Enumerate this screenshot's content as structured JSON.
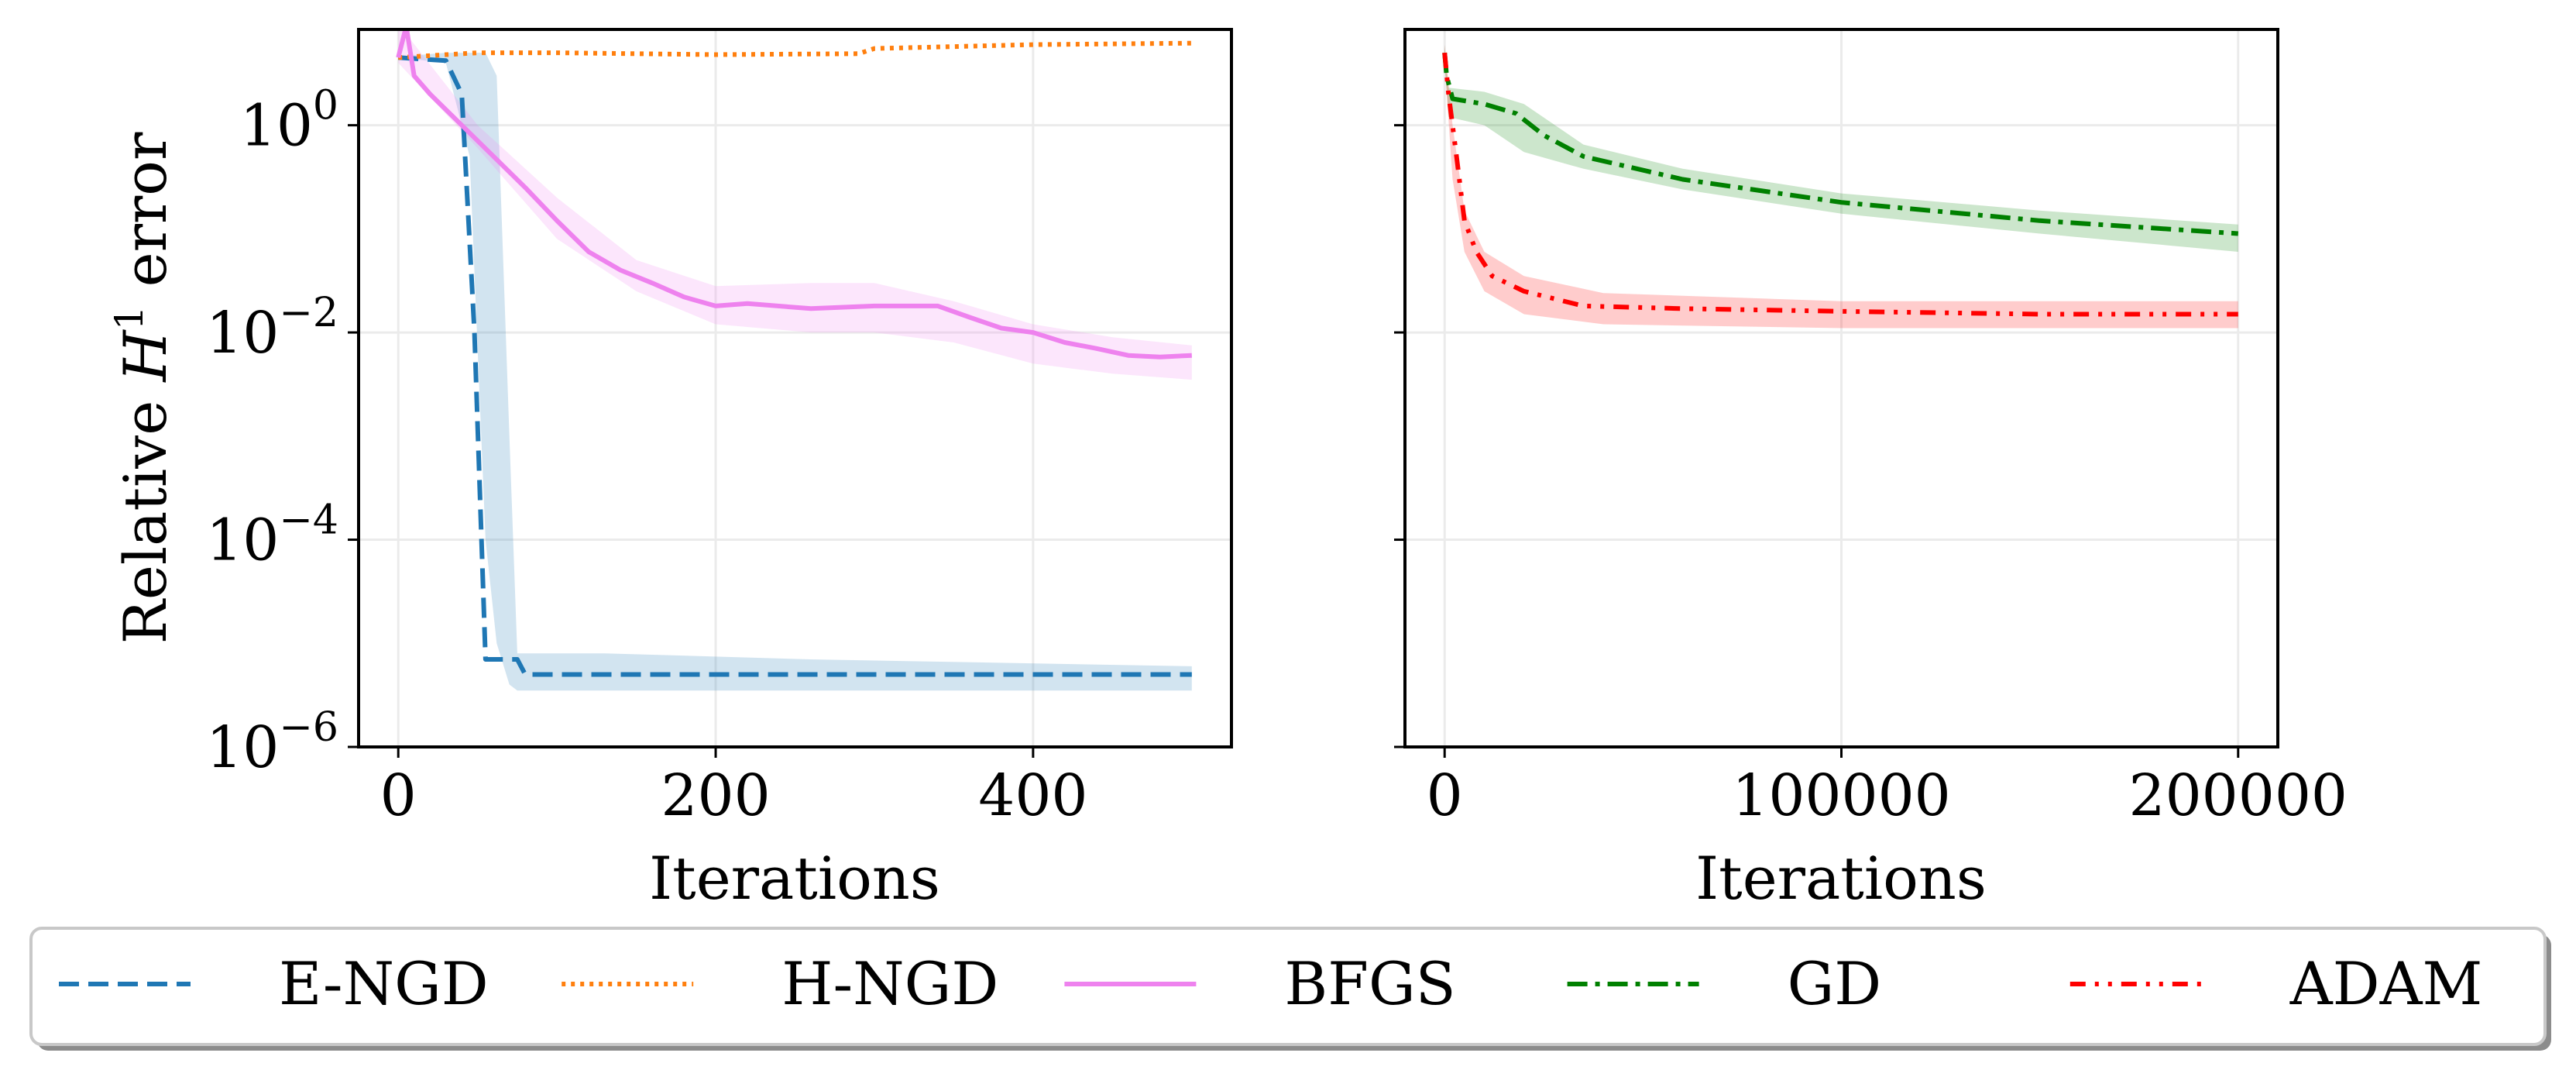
{
  "chart_data": [
    {
      "type": "line",
      "panel": "left",
      "xlabel": "Iterations",
      "ylabel": "Relative H¹ error",
      "ylabel_parts": {
        "prefix": "Relative ",
        "symbol": "H",
        "superscript": "1",
        "suffix": " error"
      },
      "yscale": "log",
      "xlim": [
        -25,
        525
      ],
      "ylim_exp": [
        -6,
        1
      ],
      "xticks": [
        0,
        200,
        400
      ],
      "xtick_labels": [
        "0",
        "200",
        "400"
      ],
      "yticks_exp": [
        0,
        -2,
        -4,
        -6
      ],
      "ytick_labels": [
        {
          "base": "10",
          "exp": "0"
        },
        {
          "base": "10",
          "exp": "−2"
        },
        {
          "base": "10",
          "exp": "−4"
        },
        {
          "base": "10",
          "exp": "−6"
        }
      ],
      "grid": true,
      "series": [
        {
          "name": "E-NGD",
          "color": "#1f77b4",
          "dash": "dashed",
          "x": [
            0,
            30,
            40,
            48,
            55,
            75,
            80,
            500
          ],
          "y": [
            4.5,
            4.2,
            2.0,
            0.01,
            7e-06,
            7e-06,
            5e-06,
            5e-06
          ],
          "band_x": [
            0,
            30,
            45,
            55,
            62,
            70,
            75,
            130,
            260,
            500
          ],
          "band_low": [
            4.5,
            4.0,
            0.5,
            0.0001,
            1e-05,
            4e-06,
            3.5e-06,
            3.5e-06,
            3.5e-06,
            3.5e-06
          ],
          "band_high": [
            4.6,
            5.0,
            5.0,
            5.0,
            3.0,
            0.001,
            8e-06,
            8e-06,
            7e-06,
            6e-06
          ]
        },
        {
          "name": "H-NGD",
          "color": "#ff7f0e",
          "dash": "dotted",
          "x": [
            0,
            50,
            100,
            200,
            290,
            300,
            400,
            500
          ],
          "y": [
            4.5,
            5.0,
            5.0,
            4.8,
            4.9,
            5.5,
            6.0,
            6.2
          ]
        },
        {
          "name": "BFGS",
          "color": "#ee82ee",
          "dash": "solid",
          "x": [
            0,
            5,
            10,
            20,
            40,
            60,
            80,
            100,
            120,
            140,
            160,
            180,
            200,
            220,
            260,
            300,
            340,
            360,
            380,
            400,
            420,
            440,
            460,
            480,
            500
          ],
          "y": [
            4.5,
            9.0,
            3.0,
            2.0,
            1.0,
            0.5,
            0.25,
            0.12,
            0.06,
            0.04,
            0.03,
            0.022,
            0.018,
            0.019,
            0.017,
            0.018,
            0.018,
            0.014,
            0.011,
            0.01,
            0.008,
            0.007,
            0.006,
            0.0058,
            0.006
          ],
          "band_x": [
            0,
            50,
            100,
            150,
            200,
            260,
            300,
            350,
            400,
            450,
            500
          ],
          "band_low": [
            4.0,
            0.6,
            0.08,
            0.025,
            0.012,
            0.01,
            0.01,
            0.008,
            0.005,
            0.004,
            0.0035
          ],
          "band_high": [
            9.5,
            1.0,
            0.2,
            0.05,
            0.028,
            0.03,
            0.03,
            0.02,
            0.012,
            0.009,
            0.0075
          ]
        }
      ]
    },
    {
      "type": "line",
      "panel": "right",
      "xlabel": "Iterations",
      "yscale": "log",
      "xlim": [
        -10000,
        210000
      ],
      "ylim_exp": [
        -6,
        1
      ],
      "xticks": [
        0,
        100000,
        200000
      ],
      "xtick_labels": [
        "0",
        "100000",
        "200000"
      ],
      "yticks_exp": [
        0,
        -2,
        -4,
        -6
      ],
      "grid": true,
      "series": [
        {
          "name": "GD",
          "color": "#008000",
          "dash": "dashdot",
          "x": [
            0,
            500,
            2000,
            10000,
            18000,
            25000,
            35000,
            60000,
            100000,
            150000,
            200000
          ],
          "y": [
            5.0,
            3.0,
            1.8,
            1.6,
            1.3,
            0.8,
            0.5,
            0.3,
            0.18,
            0.12,
            0.09
          ],
          "band_x": [
            0,
            1000,
            10000,
            20000,
            35000,
            60000,
            100000,
            150000,
            200000
          ],
          "band_low": [
            4.0,
            1.2,
            1.0,
            0.55,
            0.38,
            0.24,
            0.14,
            0.09,
            0.06
          ],
          "band_high": [
            6.0,
            2.3,
            2.1,
            1.6,
            0.65,
            0.38,
            0.22,
            0.15,
            0.11
          ]
        },
        {
          "name": "ADAM",
          "color": "#ff0000",
          "dash": "dashdotdot",
          "x": [
            0,
            1000,
            3000,
            5000,
            8000,
            12000,
            20000,
            35000,
            60000,
            100000,
            150000,
            200000
          ],
          "y": [
            5.0,
            2.0,
            0.5,
            0.12,
            0.06,
            0.035,
            0.025,
            0.018,
            0.017,
            0.016,
            0.015,
            0.015
          ],
          "band_x": [
            0,
            2000,
            5000,
            10000,
            20000,
            40000,
            100000,
            200000
          ],
          "band_low": [
            4.0,
            0.3,
            0.06,
            0.025,
            0.015,
            0.012,
            0.011,
            0.011
          ],
          "band_high": [
            6.0,
            1.0,
            0.15,
            0.06,
            0.035,
            0.024,
            0.02,
            0.02
          ]
        }
      ]
    }
  ],
  "legend": {
    "placement": "bottom",
    "entries": [
      {
        "label": "E-NGD",
        "color": "#1f77b4",
        "dash": "dashed"
      },
      {
        "label": "H-NGD",
        "color": "#ff7f0e",
        "dash": "dotted"
      },
      {
        "label": "BFGS",
        "color": "#ee82ee",
        "dash": "solid"
      },
      {
        "label": "GD",
        "color": "#008000",
        "dash": "dashdot"
      },
      {
        "label": "ADAM",
        "color": "#ff0000",
        "dash": "dashdotdot"
      }
    ]
  }
}
